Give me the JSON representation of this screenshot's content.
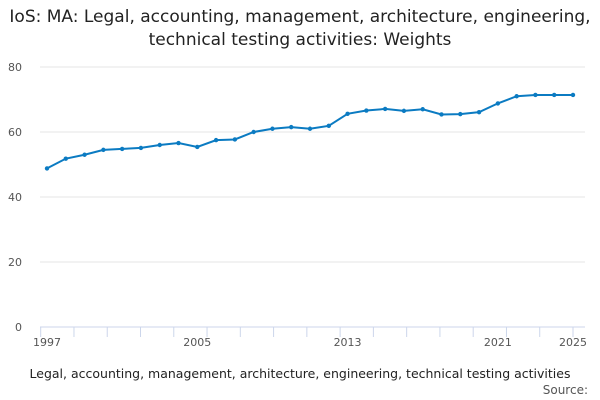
{
  "chart_data": {
    "type": "line",
    "title": "IoS: MA: Legal, accounting, management, architecture, engineering, technical testing activities: Weights",
    "xlabel": "Legal, accounting, management, architecture, engineering, technical testing activities",
    "ylabel": "",
    "source_label": "Source:",
    "x": [
      1997,
      1998,
      1999,
      2000,
      2001,
      2002,
      2003,
      2004,
      2005,
      2006,
      2007,
      2008,
      2009,
      2010,
      2011,
      2012,
      2013,
      2014,
      2015,
      2016,
      2017,
      2018,
      2019,
      2020,
      2021,
      2022,
      2023,
      2024,
      2025
    ],
    "series": [
      {
        "values": [
          48.8,
          51.8,
          53.0,
          54.5,
          54.8,
          55.1,
          56.0,
          56.6,
          55.4,
          57.5,
          57.7,
          60.0,
          61.0,
          61.5,
          61.0,
          61.9,
          65.6,
          66.6,
          67.1,
          66.5,
          67.0,
          65.4,
          65.5,
          66.1,
          68.8,
          71.0,
          71.4,
          71.4,
          71.4
        ]
      }
    ],
    "xticks": [
      1997,
      2005,
      2013,
      2021,
      2025
    ],
    "yticks": [
      0,
      20,
      40,
      60,
      80
    ],
    "ylim": [
      0,
      80
    ],
    "xlim": [
      1997,
      2025
    ],
    "grid": true,
    "color": "#0b7bc2"
  }
}
